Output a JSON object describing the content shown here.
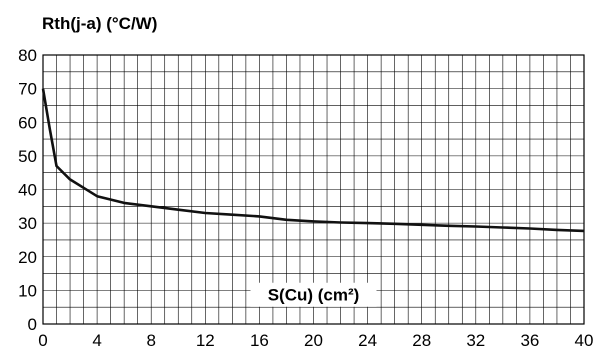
{
  "chart_data": {
    "type": "line",
    "title": "Rth(j-a) (°C/W)",
    "xlabel": "S(Cu) (cm²)",
    "ylabel": "",
    "xlim": [
      0,
      40
    ],
    "ylim": [
      0,
      80
    ],
    "x_ticks": [
      0,
      4,
      8,
      12,
      16,
      20,
      24,
      28,
      32,
      36,
      40
    ],
    "y_ticks": [
      0,
      10,
      20,
      30,
      40,
      50,
      60,
      70,
      80
    ],
    "x_tick_labels": [
      "0",
      "4",
      "8",
      "12",
      "16",
      "20",
      "24",
      "28",
      "32",
      "36",
      "40"
    ],
    "y_tick_labels": [
      "0",
      "10",
      "20",
      "30",
      "40",
      "50",
      "60",
      "70",
      "80"
    ],
    "grid": true,
    "series": [
      {
        "x": [
          0,
          0.5,
          1,
          2,
          3,
          4,
          6,
          8,
          10,
          12,
          14,
          16,
          18,
          20,
          22,
          24,
          26,
          28,
          30,
          32,
          34,
          36,
          38,
          40
        ],
        "y": [
          70,
          58,
          47,
          43,
          40.5,
          38,
          36,
          35,
          34,
          33,
          32.5,
          32,
          31,
          30.5,
          30.2,
          30,
          29.8,
          29.5,
          29.2,
          29,
          28.7,
          28.4,
          28,
          27.7
        ]
      }
    ]
  }
}
